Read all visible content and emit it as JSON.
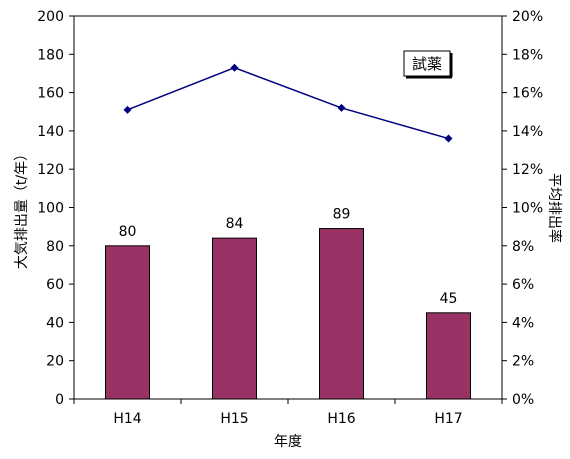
{
  "chart_data": {
    "type": "bar",
    "categories": [
      "H14",
      "H15",
      "H16",
      "H17"
    ],
    "series": [
      {
        "values": [
          80,
          84,
          89,
          45
        ],
        "axis": "left",
        "chart_type": "bar",
        "data_labels": [
          "80",
          "84",
          "89",
          "45"
        ],
        "color": "#993366"
      },
      {
        "values": [
          15.1,
          17.3,
          15.2,
          13.6
        ],
        "axis": "right",
        "chart_type": "line",
        "color": "#000080"
      }
    ],
    "xlabel": "年度",
    "ylabel": "大気排出量（t/年）",
    "y2label": "平均排出率",
    "ylim": [
      0,
      200
    ],
    "y2lim": [
      0,
      20
    ],
    "yticks": [
      "0",
      "20",
      "40",
      "60",
      "80",
      "100",
      "120",
      "140",
      "160",
      "180",
      "200"
    ],
    "y2ticks": [
      "0%",
      "2%",
      "4%",
      "6%",
      "8%",
      "10%",
      "12%",
      "14%",
      "16%",
      "18%",
      "20%"
    ],
    "annotation": "試薬",
    "grid": false
  }
}
